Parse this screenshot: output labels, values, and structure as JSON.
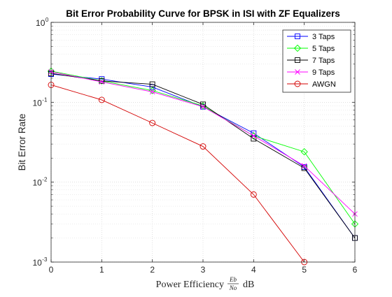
{
  "chart_data": {
    "type": "line",
    "title": "Bit Error Probability Curve for BPSK in ISI with ZF Equalizers",
    "xlabel": {
      "prefix": "Power Efficiency",
      "frac_num": "Eb",
      "frac_den": "No",
      "suffix": "dB"
    },
    "ylabel": "Bit Error Rate",
    "x_scale": "linear",
    "y_scale": "log",
    "xlim": [
      0,
      6
    ],
    "ylim": [
      0.001,
      1
    ],
    "x_ticks": [
      "0",
      "1",
      "2",
      "3",
      "4",
      "5",
      "6"
    ],
    "y_ticks": [
      {
        "value": 1,
        "base": "10",
        "exp": "0"
      },
      {
        "value": 0.1,
        "base": "10",
        "exp": "-1"
      },
      {
        "value": 0.01,
        "base": "10",
        "exp": "-2"
      },
      {
        "value": 0.001,
        "base": "10",
        "exp": "-3"
      }
    ],
    "grid": true,
    "minor_grid": true,
    "legend_position": "top-right",
    "x": [
      0,
      1,
      2,
      3,
      4,
      5,
      6
    ],
    "series": [
      {
        "name": "3 Taps",
        "color": "#0000ff",
        "marker": "square",
        "values": [
          0.225,
          0.195,
          0.155,
          0.088,
          0.041,
          0.0155,
          0.002
        ]
      },
      {
        "name": "5 Taps",
        "color": "#00ff00",
        "marker": "diamond",
        "values": [
          0.245,
          0.185,
          0.14,
          0.09,
          0.038,
          0.024,
          0.003
        ]
      },
      {
        "name": "7 Taps",
        "color": "#000000",
        "marker": "square",
        "values": [
          0.23,
          0.185,
          0.168,
          0.094,
          0.035,
          0.015,
          0.002
        ]
      },
      {
        "name": "9 Taps",
        "color": "#ff00ff",
        "marker": "x",
        "values": [
          0.24,
          0.18,
          0.135,
          0.088,
          0.038,
          0.016,
          0.004
        ]
      },
      {
        "name": "AWGN",
        "color": "#d40000",
        "marker": "circle",
        "values": [
          0.165,
          0.107,
          0.055,
          0.028,
          0.007,
          0.001,
          null
        ]
      }
    ]
  }
}
